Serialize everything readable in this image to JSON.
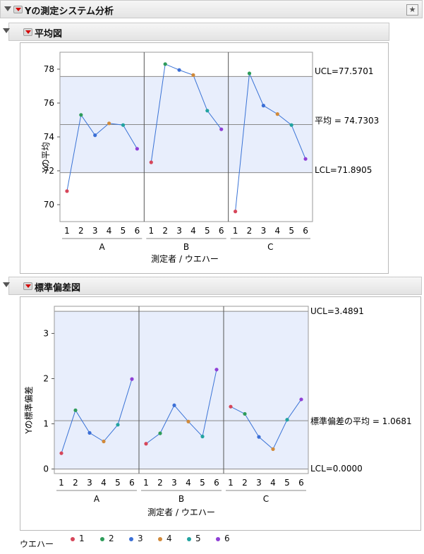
{
  "report": {
    "title": "Yの測定システム分析"
  },
  "mean_chart": {
    "title": "平均図",
    "ylabel": "Yの平均",
    "xlabel": "測定者 / ウエハー",
    "ucl_label": "UCL=77.5701",
    "mean_label": "平均 = 74.7303",
    "lcl_label": "LCL=71.8905"
  },
  "sd_chart": {
    "title": "標準偏差図",
    "ylabel": "Yの標準偏差",
    "xlabel": "測定者 / ウエハー",
    "ucl_label": "UCL=3.4891",
    "mean_label": "標準偏差の平均 = 1.0681",
    "lcl_label": "LCL=0.0000"
  },
  "legend": {
    "title": "ウエハー",
    "items": [
      {
        "label": "1",
        "color": "#d6465a"
      },
      {
        "label": "2",
        "color": "#2e9c5a"
      },
      {
        "label": "3",
        "color": "#3b6fd6"
      },
      {
        "label": "4",
        "color": "#d18a3a"
      },
      {
        "label": "5",
        "color": "#22a3a0"
      },
      {
        "label": "6",
        "color": "#8f3fd6"
      }
    ]
  },
  "chart_data": [
    {
      "type": "line",
      "title": "平均図",
      "xlabel": "測定者 / ウエハー",
      "ylabel": "Yの平均",
      "groups": [
        "A",
        "B",
        "C"
      ],
      "categories": [
        "1",
        "2",
        "3",
        "4",
        "5",
        "6"
      ],
      "series": [
        {
          "name": "A",
          "values": [
            70.8,
            75.3,
            74.1,
            74.8,
            74.7,
            73.3
          ]
        },
        {
          "name": "B",
          "values": [
            72.5,
            78.3,
            77.95,
            77.65,
            75.55,
            74.45
          ]
        },
        {
          "name": "C",
          "values": [
            69.6,
            77.75,
            75.85,
            75.35,
            74.7,
            72.7
          ]
        }
      ],
      "ucl": 77.5701,
      "center": 74.7303,
      "lcl": 71.8905,
      "ylim": [
        69.0,
        79.0
      ],
      "yticks": [
        70,
        72,
        74,
        76,
        78
      ],
      "line_color": "#3a73d6",
      "band_color": "#e8eefc"
    },
    {
      "type": "line",
      "title": "標準偏差図",
      "xlabel": "測定者 / ウエハー",
      "ylabel": "Yの標準偏差",
      "groups": [
        "A",
        "B",
        "C"
      ],
      "categories": [
        "1",
        "2",
        "3",
        "4",
        "5",
        "6"
      ],
      "series": [
        {
          "name": "A",
          "values": [
            0.35,
            1.3,
            0.8,
            0.61,
            0.98,
            1.99
          ]
        },
        {
          "name": "B",
          "values": [
            0.56,
            0.79,
            1.41,
            1.05,
            0.72,
            2.2
          ]
        },
        {
          "name": "C",
          "values": [
            1.38,
            1.22,
            0.71,
            0.44,
            1.09,
            1.54
          ]
        }
      ],
      "ucl": 3.4891,
      "center": 1.0681,
      "lcl": 0.0,
      "ylim": [
        -0.1,
        3.6
      ],
      "yticks": [
        0,
        1,
        2,
        3
      ],
      "line_color": "#3a73d6",
      "band_color": "#e8eefc"
    }
  ]
}
